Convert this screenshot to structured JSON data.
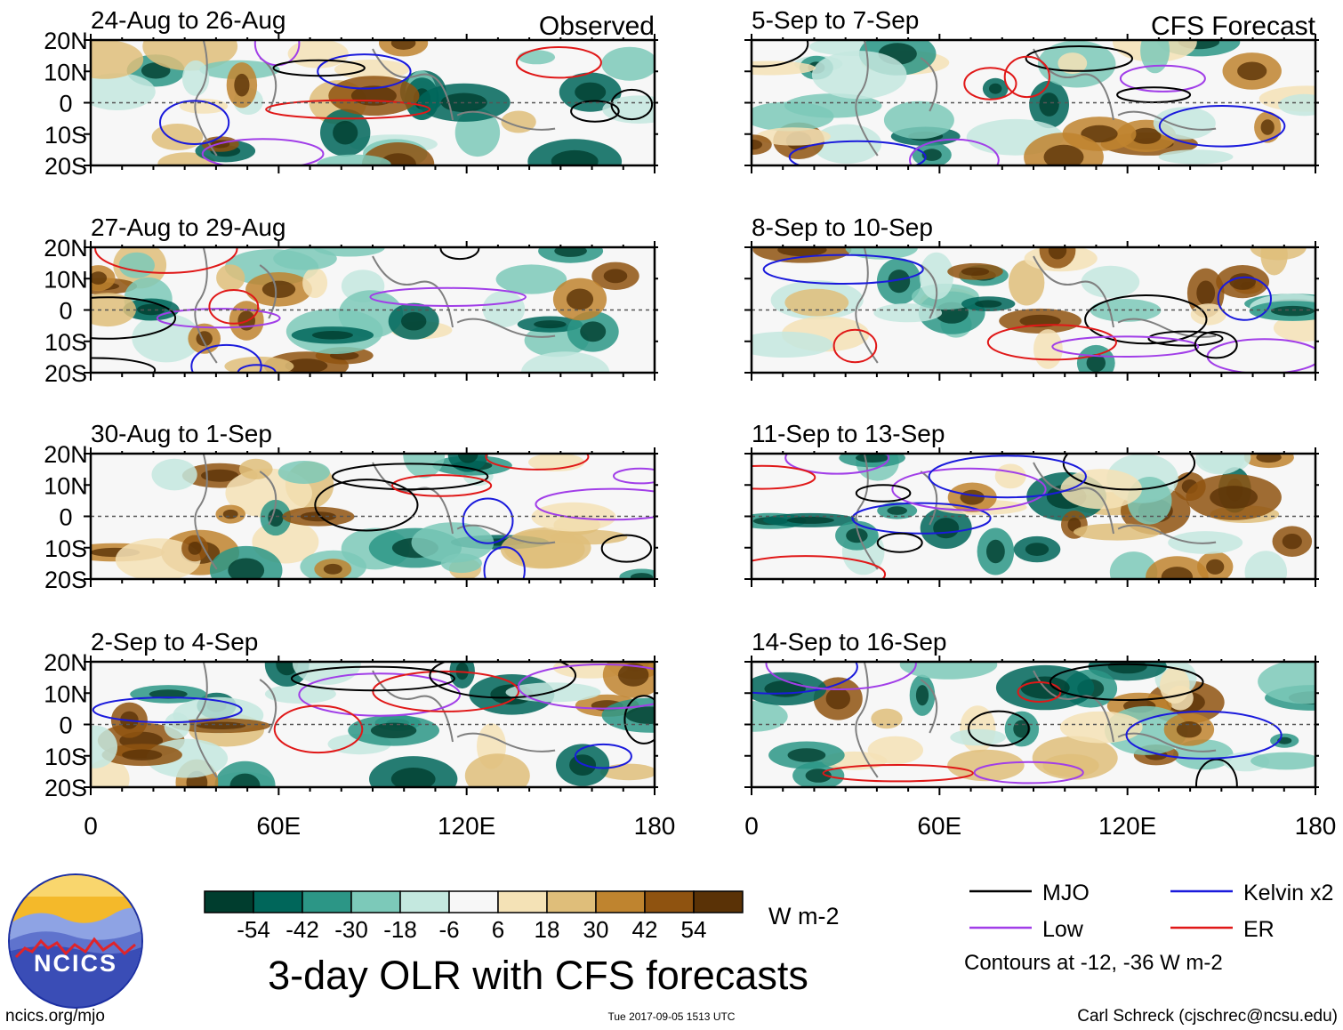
{
  "chart_data": {
    "type": "heatmap",
    "title": "3-day OLR with CFS forecasts",
    "column_labels": [
      "Observed",
      "CFS Forecast"
    ],
    "panels": [
      {
        "period": "24-Aug to 26-Aug",
        "column": "Observed"
      },
      {
        "period": "27-Aug to 29-Aug",
        "column": "Observed"
      },
      {
        "period": "30-Aug to 1-Sep",
        "column": "Observed"
      },
      {
        "period": "2-Sep to 4-Sep",
        "column": "Observed"
      },
      {
        "period": "5-Sep to 7-Sep",
        "column": "CFS Forecast"
      },
      {
        "period": "8-Sep to 10-Sep",
        "column": "CFS Forecast"
      },
      {
        "period": "11-Sep to 13-Sep",
        "column": "CFS Forecast"
      },
      {
        "period": "14-Sep to 16-Sep",
        "column": "CFS Forecast"
      }
    ],
    "y_ticks": [
      "20N",
      "10N",
      "0",
      "10S",
      "20S"
    ],
    "x_ticks": [
      "0",
      "60E",
      "120E",
      "180"
    ],
    "ylim": [
      -20,
      20
    ],
    "xlim": [
      0,
      180
    ],
    "colorbar": {
      "ticks": [
        "-54",
        "-42",
        "-30",
        "-18",
        "-6",
        "6",
        "18",
        "30",
        "42",
        "54"
      ],
      "units": "W m-2",
      "colors": [
        "#003d2e",
        "#00665a",
        "#2c9686",
        "#7cc9b9",
        "#c4e8df",
        "#f7f7f7",
        "#f4e2b6",
        "#dfbe7a",
        "#bf842f",
        "#8f5310",
        "#5a3206"
      ]
    },
    "legend": [
      {
        "label": "MJO",
        "color": "#000000"
      },
      {
        "label": "Kelvin x2",
        "color": "#1a1adc"
      },
      {
        "label": "Low",
        "color": "#a13ee8"
      },
      {
        "label": "ER",
        "color": "#e01818"
      }
    ],
    "contour_note": "Contours at -12, -36 W m-2"
  },
  "footer": {
    "logo_text": "NCICS",
    "url": "ncics.org/mjo",
    "timestamp": "Tue 2017-09-05 1513 UTC",
    "credit": "Carl Schreck (cjschrec@ncsu.edu)"
  }
}
